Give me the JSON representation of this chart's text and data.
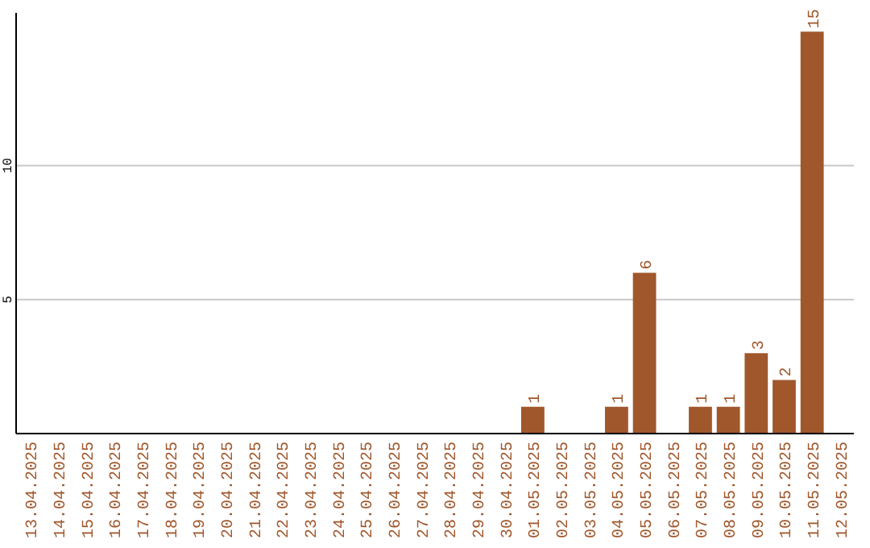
{
  "chart_data": {
    "type": "bar",
    "categories": [
      "13.04.2025",
      "14.04.2025",
      "15.04.2025",
      "16.04.2025",
      "17.04.2025",
      "18.04.2025",
      "19.04.2025",
      "20.04.2025",
      "21.04.2025",
      "22.04.2025",
      "23.04.2025",
      "24.04.2025",
      "25.04.2025",
      "26.04.2025",
      "27.04.2025",
      "28.04.2025",
      "29.04.2025",
      "30.04.2025",
      "01.05.2025",
      "02.05.2025",
      "03.05.2025",
      "04.05.2025",
      "05.05.2025",
      "06.05.2025",
      "07.05.2025",
      "08.05.2025",
      "09.05.2025",
      "10.05.2025",
      "11.05.2025",
      "12.05.2025"
    ],
    "values": [
      0,
      0,
      0,
      0,
      0,
      0,
      0,
      0,
      0,
      0,
      0,
      0,
      0,
      0,
      0,
      0,
      0,
      0,
      1,
      0,
      0,
      1,
      6,
      0,
      1,
      1,
      3,
      2,
      15,
      0
    ],
    "value_labels": [
      null,
      null,
      null,
      null,
      null,
      null,
      null,
      null,
      null,
      null,
      null,
      null,
      null,
      null,
      null,
      null,
      null,
      null,
      "1",
      null,
      null,
      "1",
      "6",
      null,
      "1",
      "1",
      "3",
      "2",
      "15",
      null
    ],
    "color": "#a0572b",
    "ylim": [
      0,
      15.7
    ],
    "yticks": [
      5,
      10
    ],
    "grid": "y"
  }
}
